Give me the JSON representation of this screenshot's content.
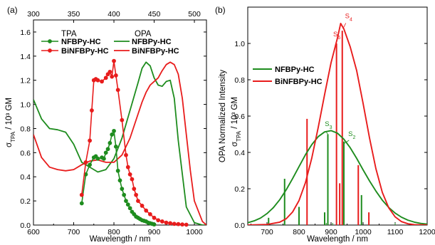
{
  "colors": {
    "green": "#1e8c1e",
    "red": "#e81c1c",
    "axis": "#000000"
  },
  "chart_data": [
    {
      "panel": "(a)",
      "type": "line",
      "xlabel": "Wavelength / nm",
      "ylabel": "σTPA / 10³ GM",
      "xlim": [
        600,
        1030
      ],
      "ylim": [
        0,
        1.7
      ],
      "xticks": [
        600,
        700,
        800,
        900,
        1000
      ],
      "yticks": [
        0.0,
        0.2,
        0.4,
        0.6,
        0.8,
        1.0,
        1.2,
        1.4,
        1.6
      ],
      "top_axis": {
        "xlim": [
          300,
          515
        ],
        "ticks": [
          300,
          350,
          400,
          450,
          500
        ]
      },
      "legend": {
        "tpa_heading": "TPA",
        "opa_heading": "OPA",
        "tpa_entries": [
          "NFBPy-HC",
          "BiNFBPy-HC"
        ],
        "opa_entries": [
          "NFBPy-HC",
          "BiNFBPy-HC"
        ]
      },
      "series": [
        {
          "name": "NFBPy-HC",
          "kind": "TPA",
          "color": "green",
          "x": [
            720,
            730,
            740,
            750,
            755,
            760,
            770,
            775,
            780,
            785,
            790,
            795,
            800,
            805,
            810,
            815,
            820,
            825,
            830,
            835,
            840,
            845,
            850,
            855,
            860,
            865,
            870,
            875,
            880,
            885,
            890,
            895,
            900
          ],
          "y": [
            0.18,
            0.42,
            0.5,
            0.56,
            0.57,
            0.55,
            0.56,
            0.55,
            0.6,
            0.63,
            0.68,
            0.75,
            0.78,
            0.65,
            0.45,
            0.37,
            0.3,
            0.25,
            0.2,
            0.17,
            0.14,
            0.11,
            0.09,
            0.07,
            0.06,
            0.05,
            0.04,
            0.035,
            0.03,
            0.02,
            0.015,
            0.01,
            0.005
          ]
        },
        {
          "name": "BiNFBPy-HC",
          "kind": "TPA",
          "color": "red",
          "x": [
            720,
            730,
            740,
            745,
            750,
            755,
            760,
            770,
            780,
            785,
            790,
            795,
            800,
            805,
            810,
            820,
            830,
            835,
            840,
            845,
            850,
            855,
            860,
            870,
            880,
            890,
            900,
            910,
            920,
            930,
            940,
            950,
            960,
            970,
            980
          ],
          "y": [
            0.25,
            0.52,
            0.7,
            0.95,
            1.2,
            1.21,
            1.2,
            1.19,
            1.22,
            1.25,
            1.27,
            1.23,
            1.36,
            1.24,
            1.12,
            0.87,
            0.58,
            0.48,
            0.42,
            0.38,
            0.3,
            0.25,
            0.2,
            0.16,
            0.12,
            0.09,
            0.06,
            0.04,
            0.03,
            0.02,
            0.015,
            0.01,
            0.008,
            0.005,
            0.003
          ]
        },
        {
          "name": "NFBPy-HC",
          "kind": "OPA",
          "color": "green",
          "x": [
            600,
            620,
            640,
            660,
            680,
            700,
            720,
            740,
            760,
            780,
            800,
            820,
            840,
            860,
            870,
            880,
            890,
            900,
            910,
            920,
            930,
            940,
            950,
            960,
            980,
            1000,
            1020,
            1030
          ],
          "y": [
            1.04,
            0.88,
            0.8,
            0.79,
            0.77,
            0.67,
            0.52,
            0.48,
            0.44,
            0.46,
            0.55,
            0.72,
            0.95,
            1.18,
            1.3,
            1.35,
            1.32,
            1.22,
            1.16,
            1.15,
            1.19,
            1.2,
            1.05,
            0.7,
            0.15,
            0.02,
            0.0,
            0.0
          ]
        },
        {
          "name": "BiNFBPy-HC",
          "kind": "OPA",
          "color": "red",
          "x": [
            600,
            620,
            640,
            660,
            680,
            700,
            720,
            740,
            760,
            780,
            800,
            820,
            840,
            860,
            870,
            880,
            890,
            900,
            910,
            920,
            930,
            940,
            950,
            960,
            970,
            980,
            990,
            1000,
            1020,
            1030
          ],
          "y": [
            0.75,
            0.56,
            0.48,
            0.46,
            0.45,
            0.46,
            0.5,
            0.53,
            0.54,
            0.52,
            0.52,
            0.58,
            0.72,
            0.92,
            1.02,
            1.1,
            1.16,
            1.19,
            1.22,
            1.28,
            1.33,
            1.35,
            1.33,
            1.25,
            1.05,
            0.75,
            0.45,
            0.2,
            0.03,
            0.0
          ]
        }
      ]
    },
    {
      "panel": "(b)",
      "type": "line",
      "xlabel": "Wavelength / nm",
      "ylabel_left": "OPA Normalized Intensity",
      "ylabel_right": "σTPA / 10³ GM",
      "xlim": [
        640,
        1200
      ],
      "ylim": [
        0,
        1.2
      ],
      "xticks": [
        700,
        800,
        900,
        1000,
        1100,
        1200
      ],
      "yticks": [
        0.0,
        0.2,
        0.4,
        0.6,
        0.8,
        1.0
      ],
      "legend": {
        "entries": [
          "NFBPy-HC",
          "BiNFBPy-HC"
        ]
      },
      "series": [
        {
          "name": "NFBPy-HC",
          "color": "green",
          "x": [
            640,
            660,
            680,
            700,
            720,
            740,
            760,
            780,
            800,
            820,
            840,
            860,
            880,
            900,
            920,
            940,
            960,
            980,
            1000,
            1020,
            1040,
            1060,
            1080,
            1100,
            1120,
            1140,
            1160,
            1180,
            1200
          ],
          "y": [
            0.013,
            0.023,
            0.039,
            0.063,
            0.096,
            0.14,
            0.194,
            0.256,
            0.322,
            0.387,
            0.443,
            0.487,
            0.513,
            0.52,
            0.506,
            0.473,
            0.425,
            0.367,
            0.304,
            0.243,
            0.187,
            0.137,
            0.097,
            0.066,
            0.043,
            0.027,
            0.016,
            0.009,
            0.005
          ]
        },
        {
          "name": "BiNFBPy-HC",
          "color": "red",
          "x": [
            640,
            700,
            740,
            760,
            780,
            800,
            820,
            840,
            860,
            880,
            900,
            920,
            930,
            940,
            960,
            980,
            1000,
            1020,
            1040,
            1060,
            1080,
            1100,
            1120,
            1140,
            1160,
            1200
          ],
          "y": [
            0.0,
            0.003,
            0.016,
            0.035,
            0.072,
            0.135,
            0.233,
            0.37,
            0.538,
            0.72,
            0.894,
            1.03,
            1.11,
            1.08,
            0.98,
            0.85,
            0.67,
            0.48,
            0.31,
            0.18,
            0.095,
            0.045,
            0.019,
            0.007,
            0.002,
            0.0
          ]
        }
      ],
      "sticks": [
        {
          "color": "green",
          "x": 705,
          "y": 0.04
        },
        {
          "color": "green",
          "x": 755,
          "y": 0.255
        },
        {
          "color": "green",
          "x": 800,
          "y": 0.1
        },
        {
          "color": "green",
          "x": 880,
          "y": 0.07
        },
        {
          "color": "green",
          "x": 890,
          "y": 0.5
        },
        {
          "color": "green",
          "x": 940,
          "y": 0.46
        },
        {
          "color": "green",
          "x": 995,
          "y": 0.165
        },
        {
          "color": "red",
          "x": 825,
          "y": 0.585
        },
        {
          "color": "red",
          "x": 917,
          "y": 1.0
        },
        {
          "color": "red",
          "x": 927,
          "y": 0.23
        },
        {
          "color": "red",
          "x": 935,
          "y": 1.07
        },
        {
          "color": "red",
          "x": 985,
          "y": 0.33
        },
        {
          "color": "red",
          "x": 1018,
          "y": 0.07
        }
      ],
      "annotations": [
        {
          "text": "S4",
          "color": "red",
          "x": 955,
          "y": 1.14
        },
        {
          "text": "S6",
          "color": "red",
          "x": 918,
          "y": 1.04
        },
        {
          "text": "S3",
          "color": "green",
          "x": 892,
          "y": 0.545
        },
        {
          "text": "S2",
          "color": "green",
          "x": 965,
          "y": 0.49
        }
      ]
    }
  ]
}
